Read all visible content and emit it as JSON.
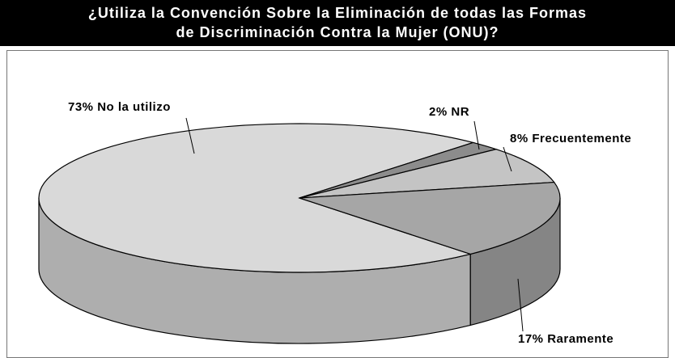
{
  "chart_data": {
    "type": "pie3d",
    "title": [
      "¿Utiliza la Convención Sobre la Eliminación de todas las Formas",
      "de Discriminación Contra la Mujer (ONU)?"
    ],
    "categories": [
      "No la utilizo",
      "NR",
      "Frecuentemente",
      "Raramente"
    ],
    "values": [
      73,
      2,
      8,
      17
    ],
    "value_labels": [
      "73%",
      "2%",
      "8%",
      "17%"
    ],
    "colors": [
      "#d9d9d9",
      "#8c8c8c",
      "#c4c4c4",
      "#a6a6a6"
    ]
  }
}
